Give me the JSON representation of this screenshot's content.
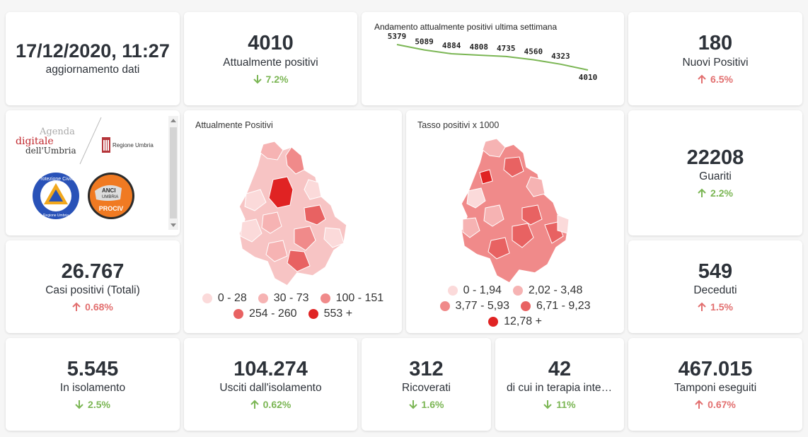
{
  "update": {
    "datetime": "17/12/2020, 11:27",
    "label": "aggiornamento dati"
  },
  "attualmente": {
    "value": "4010",
    "label": "Attualmente positivi",
    "delta": "7.2%",
    "direction": "down"
  },
  "trend": {
    "title": "Andamento attualmente positivi ultima settimana",
    "labels": [
      "5379",
      "5089",
      "4884",
      "4808",
      "4735",
      "4560",
      "4323",
      "4010"
    ],
    "line_color": "#7bb654"
  },
  "nuovi": {
    "value": "180",
    "label": "Nuovi Positivi",
    "delta": "6.5%",
    "direction": "up"
  },
  "logos": {
    "agenda_line1": "Agenda",
    "agenda_line2": "digitale",
    "agenda_line3": "dell'Umbria",
    "regione": "Regione Umbria",
    "protezione_top": "Protezione Civile",
    "protezione_bottom": "Regione Umbria",
    "anci_line1": "ANCI",
    "anci_line2": "UMBRIA",
    "anci_line3": "PROCIV"
  },
  "map1": {
    "title": "Attualmente Positivi",
    "legend": [
      {
        "label": "0 - 28",
        "color": "#fbdada"
      },
      {
        "label": "30 - 73",
        "color": "#f6b3b3"
      },
      {
        "label": "100 - 151",
        "color": "#f08a8a"
      },
      {
        "label": "254 - 260",
        "color": "#e86262"
      },
      {
        "label": "553 +",
        "color": "#e02323"
      }
    ]
  },
  "map2": {
    "title": "Tasso positivi x 1000",
    "legend": [
      {
        "label": "0 - 1,94",
        "color": "#fbdada"
      },
      {
        "label": "2,02 - 3,48",
        "color": "#f6b3b3"
      },
      {
        "label": "3,77 - 5,93",
        "color": "#f08a8a"
      },
      {
        "label": "6,71 - 9,23",
        "color": "#e86262"
      },
      {
        "label": "12,78 +",
        "color": "#e02323"
      }
    ]
  },
  "guariti": {
    "value": "22208",
    "label": "Guariti",
    "delta": "2.2%",
    "direction": "up"
  },
  "casi": {
    "value": "26.767",
    "label": "Casi positivi (Totali)",
    "delta": "0.68%",
    "direction": "up"
  },
  "deceduti": {
    "value": "549",
    "label": "Deceduti",
    "delta": "1.5%",
    "direction": "up"
  },
  "isolamento": {
    "value": "5.545",
    "label": "In isolamento",
    "delta": "2.5%",
    "direction": "down"
  },
  "usciti": {
    "value": "104.274",
    "label": "Usciti dall'isolamento",
    "delta": "0.62%",
    "direction": "up"
  },
  "ricoverati": {
    "value": "312",
    "label": "Ricoverati",
    "delta": "1.6%",
    "direction": "down"
  },
  "terapia": {
    "value": "42",
    "label": "di cui in terapia intensiva",
    "delta": "11%",
    "direction": "down"
  },
  "tamponi": {
    "value": "467.015",
    "label": "Tamponi eseguiti",
    "delta": "0.67%",
    "direction": "up"
  },
  "colors": {
    "up_red": "#e26f6f",
    "down_green": "#7bb654",
    "good_up_green": "#7bb654",
    "map_dark": "#e02323"
  }
}
